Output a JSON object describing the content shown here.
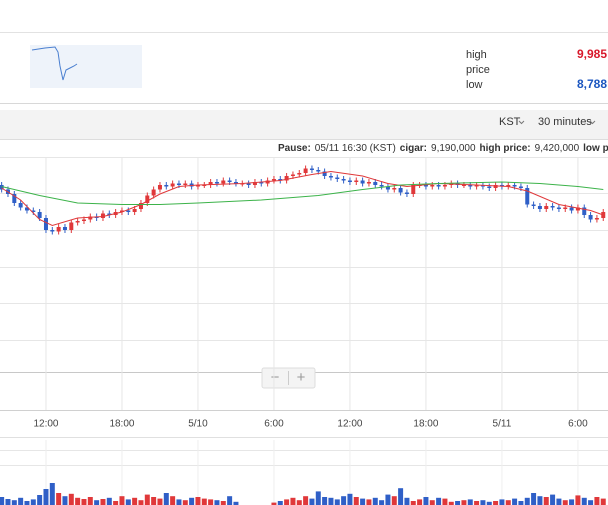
{
  "header": {
    "high_label": "high",
    "high_value": "9,985",
    "price_label": "price",
    "low_label": "low",
    "low_value": "8,788"
  },
  "toolbar": {
    "timezone": "KST",
    "interval": "30 minutes"
  },
  "info": {
    "pause_label": "Pause:",
    "pause_value": "05/11 16:30 (KST)",
    "close_label": "cigar:",
    "close_value": "9,190,000",
    "high_label": "high price:",
    "high_value": "9,420,000",
    "low_label": "low price:"
  },
  "zoom": {
    "out": "−",
    "in": "+"
  },
  "chart_data": {
    "type": "candlestick",
    "up_color": "#e0383a",
    "down_color": "#2f5fc7",
    "xlim": [
      -0.26,
      95.75
    ],
    "ylim": [
      7800000,
      9600000
    ],
    "xticks": [
      {
        "value": 7,
        "label": "12:00"
      },
      {
        "value": 19,
        "label": "18:00"
      },
      {
        "value": 31,
        "label": "5/10"
      },
      {
        "value": 43,
        "label": "6:00"
      },
      {
        "value": 55,
        "label": "12:00"
      },
      {
        "value": 67,
        "label": "18:00"
      },
      {
        "value": 79,
        "label": "5/11"
      },
      {
        "value": 91,
        "label": "6:00"
      }
    ],
    "open": [
      9300000,
      9270000,
      9240000,
      9180000,
      9150000,
      9130000,
      9120000,
      9080000,
      9000000,
      8990000,
      9020000,
      9000000,
      9050000,
      9060000,
      9070000,
      9090000,
      9080000,
      9110000,
      9100000,
      9120000,
      9130000,
      9120000,
      9140000,
      9180000,
      9230000,
      9270000,
      9300000,
      9290000,
      9310000,
      9300000,
      9310000,
      9290000,
      9300000,
      9300000,
      9320000,
      9310000,
      9330000,
      9320000,
      9310000,
      9310000,
      9300000,
      9320000,
      9310000,
      9330000,
      9340000,
      9330000,
      9360000,
      9370000,
      9380000,
      9410000,
      9400000,
      9390000,
      9360000,
      9350000,
      9340000,
      9330000,
      9320000,
      9330000,
      9310000,
      9320000,
      9300000,
      9290000,
      9270000,
      9280000,
      9250000,
      9240000,
      9300000,
      9300000,
      9290000,
      9300000,
      9290000,
      9300000,
      9310000,
      9300000,
      9300000,
      9290000,
      9300000,
      9290000,
      9280000,
      9300000,
      9290000,
      9300000,
      9290000,
      9280000,
      9170000,
      9160000,
      9140000,
      9160000,
      9150000,
      9140000,
      9150000,
      9130000,
      9150000,
      9100000,
      9070000,
      9080000
    ],
    "high": [
      9320000,
      9290000,
      9260000,
      9200000,
      9170000,
      9150000,
      9140000,
      9100000,
      9020000,
      9040000,
      9040000,
      9070000,
      9080000,
      9090000,
      9110000,
      9110000,
      9130000,
      9130000,
      9140000,
      9150000,
      9150000,
      9160000,
      9200000,
      9250000,
      9290000,
      9320000,
      9320000,
      9330000,
      9330000,
      9330000,
      9330000,
      9320000,
      9320000,
      9340000,
      9340000,
      9350000,
      9350000,
      9340000,
      9330000,
      9330000,
      9340000,
      9340000,
      9350000,
      9360000,
      9360000,
      9380000,
      9390000,
      9400000,
      9430000,
      9430000,
      9420000,
      9410000,
      9380000,
      9370000,
      9360000,
      9350000,
      9350000,
      9350000,
      9340000,
      9340000,
      9320000,
      9310000,
      9300000,
      9300000,
      9270000,
      9320000,
      9320000,
      9320000,
      9320000,
      9320000,
      9320000,
      9330000,
      9330000,
      9320000,
      9320000,
      9320000,
      9320000,
      9310000,
      9320000,
      9320000,
      9320000,
      9320000,
      9310000,
      9300000,
      9190000,
      9180000,
      9180000,
      9180000,
      9170000,
      9170000,
      9170000,
      9170000,
      9170000,
      9120000,
      9100000,
      9140000
    ],
    "low": [
      9250000,
      9220000,
      9160000,
      9130000,
      9110000,
      9100000,
      9060000,
      8980000,
      8970000,
      8970000,
      8980000,
      8980000,
      9030000,
      9040000,
      9050000,
      9060000,
      9060000,
      9080000,
      9080000,
      9100000,
      9100000,
      9100000,
      9120000,
      9160000,
      9210000,
      9250000,
      9270000,
      9270000,
      9280000,
      9280000,
      9270000,
      9270000,
      9280000,
      9280000,
      9290000,
      9290000,
      9300000,
      9290000,
      9290000,
      9280000,
      9280000,
      9290000,
      9290000,
      9310000,
      9310000,
      9310000,
      9340000,
      9350000,
      9360000,
      9380000,
      9370000,
      9340000,
      9330000,
      9320000,
      9310000,
      9300000,
      9300000,
      9290000,
      9290000,
      9280000,
      9270000,
      9250000,
      9250000,
      9230000,
      9220000,
      9220000,
      9280000,
      9270000,
      9270000,
      9270000,
      9270000,
      9280000,
      9280000,
      9280000,
      9270000,
      9270000,
      9270000,
      9260000,
      9260000,
      9270000,
      9270000,
      9270000,
      9260000,
      9150000,
      9140000,
      9120000,
      9120000,
      9130000,
      9120000,
      9120000,
      9110000,
      9110000,
      9080000,
      9050000,
      9050000,
      9060000
    ],
    "close": [
      9270000,
      9240000,
      9180000,
      9150000,
      9130000,
      9120000,
      9080000,
      9000000,
      8990000,
      9020000,
      9000000,
      9050000,
      9060000,
      9070000,
      9090000,
      9080000,
      9110000,
      9100000,
      9120000,
      9130000,
      9120000,
      9140000,
      9180000,
      9230000,
      9270000,
      9300000,
      9290000,
      9310000,
      9300000,
      9310000,
      9290000,
      9300000,
      9300000,
      9320000,
      9310000,
      9330000,
      9320000,
      9310000,
      9310000,
      9300000,
      9320000,
      9310000,
      9330000,
      9340000,
      9330000,
      9360000,
      9370000,
      9380000,
      9410000,
      9400000,
      9390000,
      9360000,
      9350000,
      9340000,
      9330000,
      9320000,
      9330000,
      9310000,
      9320000,
      9300000,
      9290000,
      9270000,
      9280000,
      9250000,
      9240000,
      9300000,
      9300000,
      9290000,
      9300000,
      9290000,
      9300000,
      9310000,
      9300000,
      9300000,
      9290000,
      9300000,
      9290000,
      9280000,
      9300000,
      9290000,
      9300000,
      9290000,
      9280000,
      9170000,
      9160000,
      9140000,
      9160000,
      9150000,
      9140000,
      9150000,
      9130000,
      9150000,
      9100000,
      9070000,
      9080000,
      9120000
    ],
    "series": [
      {
        "color": "#e0383a",
        "x": [
          0,
          3,
          6,
          8,
          12,
          16,
          19,
          22,
          25,
          28,
          31,
          38,
          44,
          49,
          52,
          57,
          61,
          64,
          69,
          75,
          80,
          83,
          88,
          93,
          95
        ],
        "values": [
          9280000,
          9200000,
          9070000,
          9030000,
          9080000,
          9090000,
          9120000,
          9170000,
          9240000,
          9290000,
          9300000,
          9310000,
          9330000,
          9370000,
          9390000,
          9360000,
          9310000,
          9290000,
          9310000,
          9300000,
          9290000,
          9260000,
          9170000,
          9130000,
          9100000
        ]
      },
      {
        "color": "#3cb34a",
        "x": [
          0,
          6,
          12,
          19,
          25,
          31,
          41,
          50,
          57,
          63,
          69,
          79,
          85,
          91,
          95
        ],
        "values": [
          9290000,
          9230000,
          9180000,
          9170000,
          9170000,
          9180000,
          9200000,
          9230000,
          9270000,
          9300000,
          9310000,
          9320000,
          9310000,
          9290000,
          9270000
        ]
      }
    ],
    "volume": {
      "ylim": [
        0,
        100
      ],
      "values": [
        20,
        15,
        12,
        18,
        10,
        14,
        25,
        40,
        55,
        30,
        22,
        28,
        18,
        15,
        20,
        12,
        15,
        18,
        10,
        22,
        14,
        18,
        12,
        26,
        20,
        16,
        30,
        22,
        14,
        12,
        18,
        20,
        16,
        14,
        12,
        10,
        22,
        8,
        0,
        0,
        0,
        0,
        0,
        6,
        10,
        14,
        18,
        12,
        22,
        16,
        34,
        20,
        18,
        14,
        22,
        28,
        20,
        16,
        14,
        18,
        12,
        26,
        22,
        42,
        18,
        10,
        14,
        20,
        12,
        18,
        16,
        8,
        10,
        12,
        14,
        10,
        12,
        8,
        10,
        14,
        12,
        16,
        10,
        18,
        30,
        22,
        20,
        26,
        16,
        12,
        14,
        24,
        18,
        12,
        20,
        16
      ]
    }
  }
}
